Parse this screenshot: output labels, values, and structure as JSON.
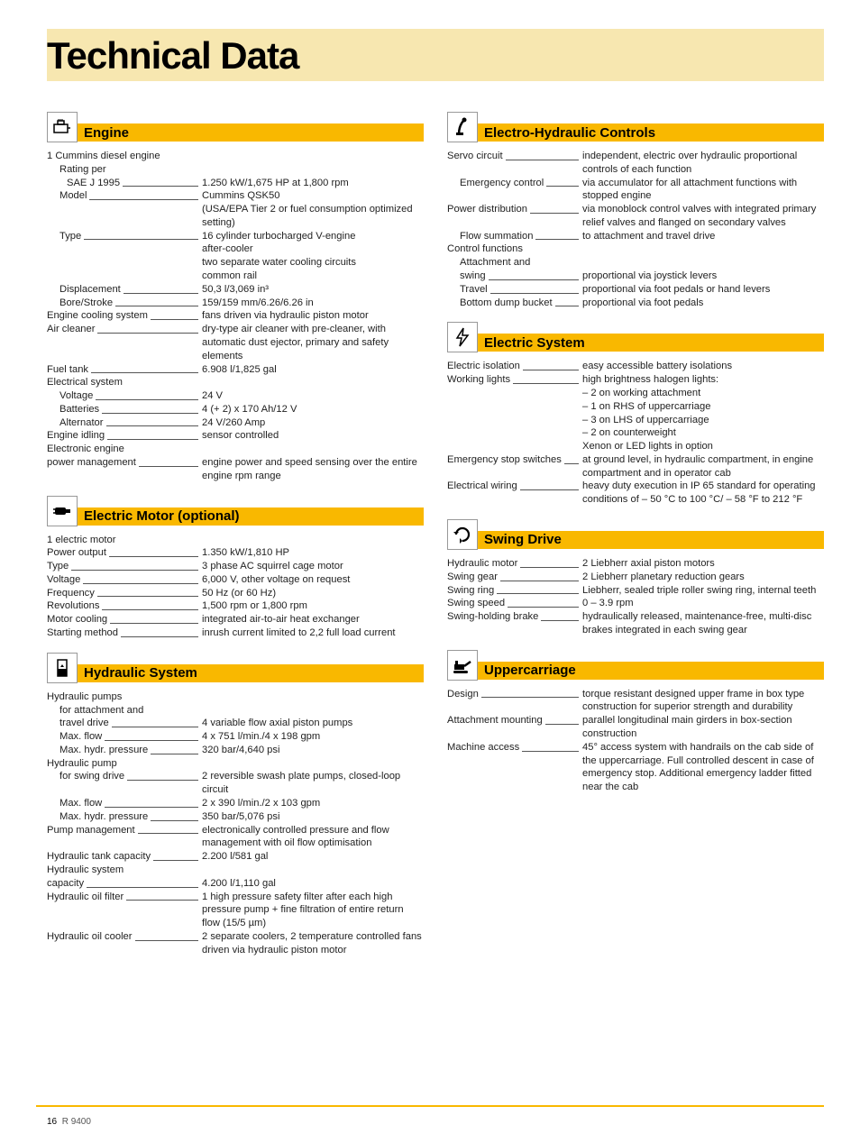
{
  "colors": {
    "cream": "#f7e7b0",
    "amber": "#f9b800",
    "text": "#222222"
  },
  "title": "Technical Data",
  "footer": {
    "page": "16",
    "model": "R 9400"
  },
  "left_sections": [
    {
      "icon": "engine-icon",
      "heading": "Engine",
      "rows": [
        {
          "label": "1 Cummins diesel engine",
          "value": "",
          "noleader": true
        },
        {
          "label": "Rating per",
          "value": "",
          "indent": 1,
          "noleader": true
        },
        {
          "label": "SAE J 1995",
          "value": "1.250 kW/1,675 HP at 1,800 rpm",
          "indent": 2
        },
        {
          "label": "Model",
          "value": "Cummins QSK50",
          "indent": 1
        },
        {
          "label": "",
          "value": "(USA/EPA Tier 2 or fuel consumption optimized setting)",
          "valueonly": true
        },
        {
          "label": "Type",
          "value": "16 cylinder turbocharged V-engine",
          "indent": 1
        },
        {
          "label": "",
          "value": "after-cooler",
          "valueonly": true
        },
        {
          "label": "",
          "value": "two separate water cooling circuits",
          "valueonly": true
        },
        {
          "label": "",
          "value": "common rail",
          "valueonly": true
        },
        {
          "label": "Displacement",
          "value": "50,3 l/3,069 in³",
          "indent": 1
        },
        {
          "label": "Bore/Stroke",
          "value": "159/159 mm/6.26/6.26 in",
          "indent": 1
        },
        {
          "label": "Engine cooling system",
          "value": "fans driven via hydraulic piston motor"
        },
        {
          "label": "Air cleaner",
          "value": "dry-type air cleaner with pre-cleaner, with automatic dust ejector, primary and safety elements"
        },
        {
          "label": "Fuel tank",
          "value": "6.908 l/1,825 gal"
        },
        {
          "label": "Electrical system",
          "value": "",
          "noleader": true
        },
        {
          "label": "Voltage",
          "value": "24 V",
          "indent": 1
        },
        {
          "label": "Batteries",
          "value": "4 (+ 2) x 170 Ah/12 V",
          "indent": 1
        },
        {
          "label": "Alternator",
          "value": "24 V/260 Amp",
          "indent": 1
        },
        {
          "label": "Engine idling",
          "value": "sensor controlled"
        },
        {
          "label": "Electronic engine",
          "value": "",
          "noleader": true
        },
        {
          "label": "power management",
          "value": "engine power and speed sensing over the entire engine rpm range"
        }
      ]
    },
    {
      "icon": "electric-motor-icon",
      "heading": "Electric Motor (optional)",
      "rows": [
        {
          "label": "1 electric motor",
          "value": "",
          "noleader": true
        },
        {
          "label": "Power output",
          "value": "1.350 kW/1,810 HP"
        },
        {
          "label": "Type",
          "value": "3 phase AC squirrel cage motor"
        },
        {
          "label": "Voltage",
          "value": "6,000 V, other voltage on request"
        },
        {
          "label": "Frequency",
          "value": "50 Hz (or 60 Hz)"
        },
        {
          "label": "Revolutions",
          "value": "1,500 rpm or 1,800 rpm"
        },
        {
          "label": "Motor cooling",
          "value": "integrated air-to-air heat exchanger"
        },
        {
          "label": "Starting method",
          "value": "inrush current limited to 2,2 full load current"
        }
      ]
    },
    {
      "icon": "hydraulic-icon",
      "heading": "Hydraulic System",
      "rows": [
        {
          "label": "Hydraulic pumps",
          "value": "",
          "noleader": true
        },
        {
          "label": "for attachment and",
          "value": "",
          "indent": 1,
          "noleader": true
        },
        {
          "label": "travel drive",
          "value": "4 variable flow axial piston pumps",
          "indent": 1
        },
        {
          "label": "Max. flow",
          "value": "4 x 751 l/min./4 x 198 gpm",
          "indent": 1
        },
        {
          "label": "Max. hydr. pressure",
          "value": "320 bar/4,640 psi",
          "indent": 1
        },
        {
          "label": "Hydraulic pump",
          "value": "",
          "noleader": true
        },
        {
          "label": "for swing drive",
          "value": "2 reversible swash plate pumps, closed-loop circuit",
          "indent": 1
        },
        {
          "label": "Max. flow",
          "value": "2 x 390 l/min./2 x 103 gpm",
          "indent": 1
        },
        {
          "label": "Max. hydr. pressure",
          "value": "350 bar/5,076 psi",
          "indent": 1
        },
        {
          "label": "Pump management",
          "value": "electronically controlled pressure and flow management with oil flow optimisation"
        },
        {
          "label": "Hydraulic tank capacity",
          "value": "2.200 l/581 gal"
        },
        {
          "label": "Hydraulic system",
          "value": "",
          "noleader": true
        },
        {
          "label": "capacity",
          "value": "4.200 l/1,110 gal"
        },
        {
          "label": "Hydraulic oil filter",
          "value": "1 high pressure safety filter after each high pressure pump + fine filtration of entire return flow (15/5 µm)"
        },
        {
          "label": "Hydraulic oil cooler",
          "value": "2 separate coolers, 2 temperature controlled fans driven via hydraulic piston motor"
        }
      ]
    }
  ],
  "right_sections": [
    {
      "icon": "controls-icon",
      "heading": "Electro-Hydraulic Controls",
      "rows": [
        {
          "label": "Servo circuit",
          "value": "independent, electric over hydraulic proportional controls of each function"
        },
        {
          "label": "Emergency control",
          "value": "via accumulator for all attachment functions with stopped engine",
          "indent": 1
        },
        {
          "label": "Power distribution",
          "value": "via monoblock control valves with integrated primary relief valves and flanged on secondary valves"
        },
        {
          "label": "Flow summation",
          "value": "to attachment and travel drive",
          "indent": 1
        },
        {
          "label": "Control functions",
          "value": "",
          "noleader": true
        },
        {
          "label": "Attachment and",
          "value": "",
          "indent": 1,
          "noleader": true
        },
        {
          "label": "swing",
          "value": "proportional via joystick levers",
          "indent": 1
        },
        {
          "label": "Travel",
          "value": "proportional via foot pedals or hand levers",
          "indent": 1
        },
        {
          "label": "Bottom dump bucket",
          "value": "proportional via foot pedals",
          "indent": 1
        }
      ]
    },
    {
      "icon": "electric-system-icon",
      "heading": "Electric System",
      "rows": [
        {
          "label": "Electric isolation",
          "value": "easy accessible battery isolations"
        },
        {
          "label": "Working lights",
          "value": "high brightness halogen lights:"
        },
        {
          "label": "",
          "value": "– 2 on working attachment",
          "valueonly": true
        },
        {
          "label": "",
          "value": "– 1 on RHS of uppercarriage",
          "valueonly": true
        },
        {
          "label": "",
          "value": "– 3 on LHS of uppercarriage",
          "valueonly": true
        },
        {
          "label": "",
          "value": "– 2 on counterweight",
          "valueonly": true
        },
        {
          "label": "",
          "value": "Xenon or LED lights in option",
          "valueonly": true
        },
        {
          "label": "Emergency stop switches",
          "value": "at ground level, in hydraulic compartment, in engine compartment and in operator cab"
        },
        {
          "label": "Electrical wiring",
          "value": "heavy duty execution in IP 65 standard for operating conditions of – 50 °C to 100 °C/ – 58 °F to 212 °F"
        }
      ]
    },
    {
      "icon": "swing-drive-icon",
      "heading": "Swing Drive",
      "rows": [
        {
          "label": "Hydraulic motor",
          "value": "2 Liebherr axial piston motors"
        },
        {
          "label": "Swing gear",
          "value": "2 Liebherr planetary reduction gears"
        },
        {
          "label": "Swing ring",
          "value": "Liebherr, sealed triple roller swing ring, internal teeth"
        },
        {
          "label": "Swing speed",
          "value": "0 – 3.9 rpm"
        },
        {
          "label": "Swing-holding brake",
          "value": "hydraulically released, maintenance-free, multi-disc brakes integrated in each swing gear"
        }
      ]
    },
    {
      "icon": "uppercarriage-icon",
      "heading": "Uppercarriage",
      "rows": [
        {
          "label": "Design",
          "value": "torque resistant designed upper frame in box type construction for superior strength and durability"
        },
        {
          "label": "Attachment mounting",
          "value": "parallel longitudinal main girders in box-section construction"
        },
        {
          "label": "Machine access",
          "value": "45° access system with handrails on the cab side of the uppercarriage. Full controlled descent in case of emergency stop. Additional emergency ladder fitted near the cab"
        }
      ]
    }
  ]
}
